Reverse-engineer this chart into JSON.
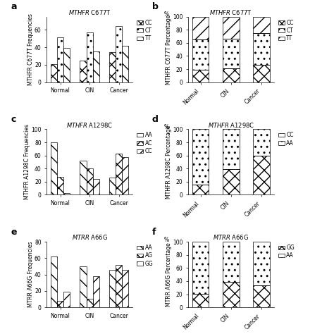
{
  "panel_a": {
    "title": "$\\it{MTHFR}$ C677T",
    "ylabel": "MTHFR C677T Frequencies",
    "groups": [
      "Normal",
      "CIN",
      "Cancer"
    ],
    "CC": [
      21,
      25,
      34
    ],
    "CT": [
      51,
      57,
      64
    ],
    "TT": [
      39,
      35,
      42
    ],
    "ylim": [
      0,
      75
    ],
    "yticks": [
      0,
      20,
      40,
      60
    ]
  },
  "panel_b": {
    "title": "$\\it{MTHFR}$ C677T",
    "ylabel": "MTHFR C677T Percentage",
    "groups": [
      "Normal",
      "CIN",
      "Cancer"
    ],
    "CC": [
      19,
      21,
      26
    ],
    "CT": [
      46,
      45,
      49
    ],
    "TT": [
      35,
      34,
      25
    ],
    "ylim": [
      0,
      100
    ],
    "yticks": [
      0,
      20,
      40,
      60,
      80,
      100
    ]
  },
  "panel_c": {
    "title": "$\\it{MTHFR}$ A1298C",
    "ylabel": "MTHFR A1298C Frequencies",
    "groups": [
      "Normal",
      "CIN",
      "Cancer"
    ],
    "AA": [
      80,
      52,
      26
    ],
    "AC": [
      27,
      40,
      63
    ],
    "CC": [
      3,
      24,
      57
    ],
    "ylim": [
      0,
      100
    ],
    "yticks": [
      0,
      20,
      40,
      60,
      80,
      100
    ]
  },
  "panel_d": {
    "title": "$\\it{MTHFR}$ A1298C",
    "ylabel": "MTHFR A1298C Percentage",
    "groups": [
      "Normal",
      "CIN",
      "Cancer"
    ],
    "CC": [
      15,
      39,
      60
    ],
    "AA": [
      85,
      61,
      40
    ],
    "ylim": [
      0,
      100
    ],
    "yticks": [
      0,
      20,
      40,
      60,
      80,
      100
    ]
  },
  "panel_e": {
    "title": "$\\it{MTRR}$ A66G",
    "ylabel": "MTRR A66G Frequencies",
    "groups": [
      "Normal",
      "CIN",
      "Cancer"
    ],
    "AA": [
      62,
      50,
      46
    ],
    "AG": [
      8,
      10,
      52
    ],
    "GG": [
      19,
      38,
      46
    ],
    "ylim": [
      0,
      80
    ],
    "yticks": [
      0,
      20,
      40,
      60,
      80
    ]
  },
  "panel_f": {
    "title": "$\\it{MTRR}$ A66G",
    "ylabel": "MTRR A66G Percentage",
    "groups": [
      "Normal",
      "CIN",
      "Cancer"
    ],
    "GG": [
      21,
      39,
      34
    ],
    "AA": [
      79,
      61,
      66
    ],
    "ylim": [
      0,
      100
    ],
    "yticks": [
      0,
      20,
      40,
      60,
      80,
      100
    ]
  },
  "background": "#ffffff",
  "title_fontsize": 6,
  "axis_label_fontsize": 5.5,
  "tick_fontsize": 5.5,
  "legend_fontsize": 5.5,
  "panel_label_fontsize": 9
}
